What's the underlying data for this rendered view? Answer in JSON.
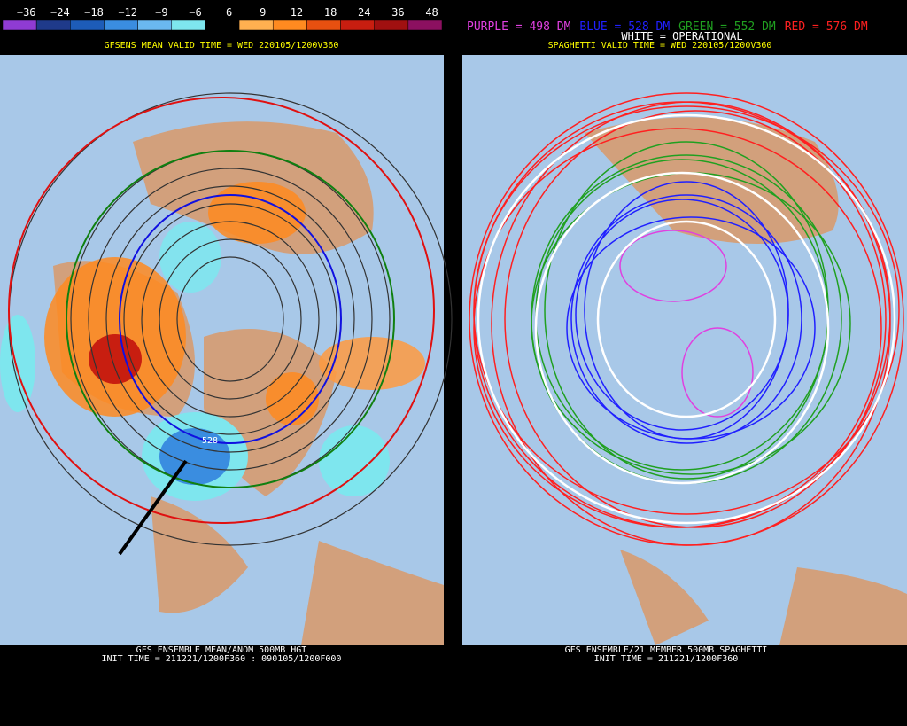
{
  "colorbar": {
    "labels": [
      "−36",
      "−24",
      "−18",
      "−12",
      "−9",
      "−6",
      "6",
      "9",
      "12",
      "18",
      "24",
      "36",
      "48"
    ],
    "colors": [
      "#8f3bd3",
      "#1f3a8a",
      "#1d5cb8",
      "#3a8de0",
      "#6ab8f0",
      "#7ee6ee",
      "#000000",
      "#ffb050",
      "#ff8a20",
      "#e85010",
      "#c81e10",
      "#a01010",
      "#8c1060"
    ]
  },
  "left_panel": {
    "valid_time": "GFSENS MEAN VALID TIME = WED 220105/1200V360",
    "contour_label": "528",
    "footer": [
      "GFS ENSEMBLE MEAN/ANOM 500MB HGT",
      "INIT TIME = 211221/1200F360 : 090105/1200F000"
    ]
  },
  "right_panel": {
    "legend": [
      {
        "text": "PURPLE = 498 DM",
        "color": "#e040e0"
      },
      {
        "text": "BLUE = 528 DM",
        "color": "#2020ff"
      },
      {
        "text": "GREEN = 552 DM",
        "color": "#20a020"
      },
      {
        "text": "RED = 576 DM",
        "color": "#ff2020"
      }
    ],
    "operational": "WHITE = OPERATIONAL",
    "valid_time": "SPAGHETTI VALID TIME = WED 220105/1200V360",
    "footer": [
      "GFS ENSEMBLE/21 MEMBER 500MB SPAGHETTI",
      "INIT TIME = 211221/1200F360"
    ]
  }
}
